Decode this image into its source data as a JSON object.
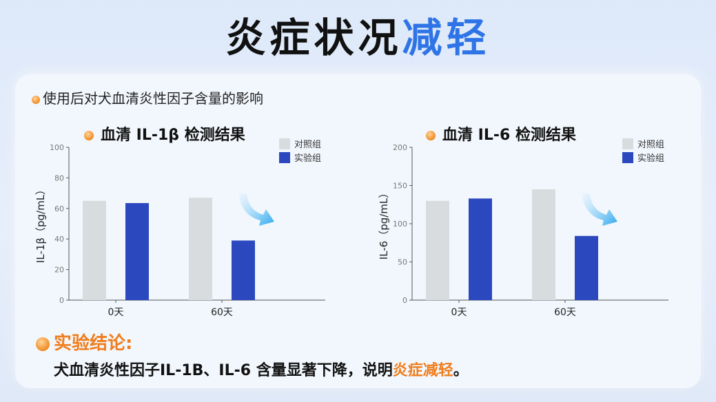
{
  "header": {
    "title_main": "炎症状况",
    "title_highlight": "减轻"
  },
  "subtitle": "使用后对犬血清炎性因子含量的影响",
  "colors": {
    "control": "#d9dcdf",
    "experiment": "#2b48bf",
    "accent_orange": "#f07d1c",
    "title_blue": "#2f74e6"
  },
  "chart_data": [
    {
      "type": "bar",
      "title": "血清 IL-1β 检测结果",
      "ylabel": "IL-1β（pg/mL）",
      "categories": [
        "0天",
        "60天"
      ],
      "ylim": [
        0,
        100
      ],
      "yticks": [
        "0",
        "20",
        "40",
        "60",
        "80",
        "100"
      ],
      "series": [
        {
          "name": "对照组",
          "values": [
            65,
            67
          ]
        },
        {
          "name": "实验组",
          "values": [
            63.5,
            39
          ]
        }
      ],
      "legend_position": "top-right",
      "annotation": "arrow-down"
    },
    {
      "type": "bar",
      "title": "血清 IL-6 检测结果",
      "ylabel": "IL-6（pg/mL）",
      "categories": [
        "0天",
        "60天"
      ],
      "ylim": [
        0,
        200
      ],
      "yticks": [
        "0",
        "50",
        "100",
        "150",
        "200"
      ],
      "series": [
        {
          "name": "对照组",
          "values": [
            130,
            145
          ]
        },
        {
          "name": "实验组",
          "values": [
            133,
            84
          ]
        }
      ],
      "legend_position": "top-right",
      "annotation": "arrow-down"
    }
  ],
  "conclusion": {
    "heading": "实验结论:",
    "body_prefix": "犬血清炎性因子IL-1B、IL-6 含量显著下降，说明",
    "body_highlight": "炎症减轻",
    "body_suffix": "。"
  }
}
